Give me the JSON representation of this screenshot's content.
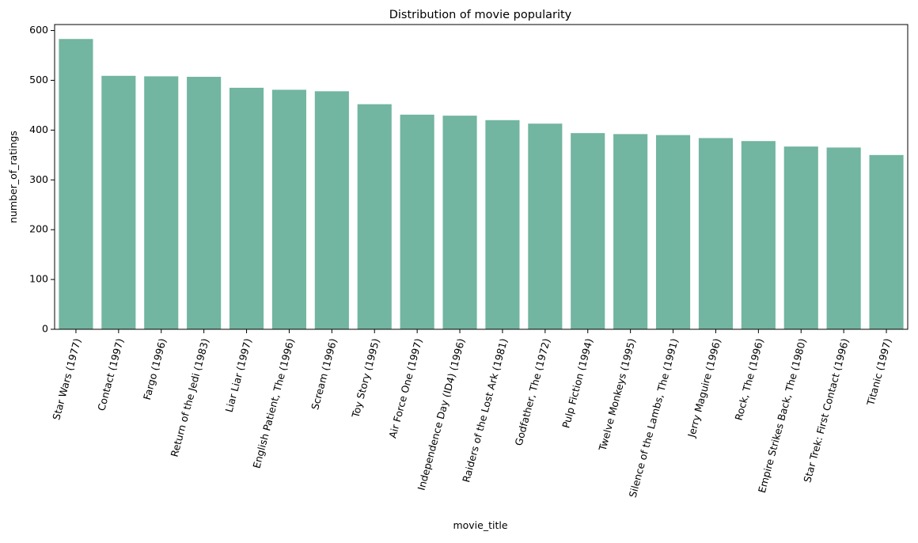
{
  "chart_data": {
    "type": "bar",
    "title": "Distribution of movie popularity",
    "xlabel": "movie_title",
    "ylabel": "number_of_ratings",
    "ylim": [
      0,
      612
    ],
    "yticks": [
      0,
      100,
      200,
      300,
      400,
      500,
      600
    ],
    "grid": false,
    "bar_color": "#72b5a0",
    "categories": [
      "Star Wars (1977)",
      "Contact (1997)",
      "Fargo (1996)",
      "Return of the Jedi (1983)",
      "Liar Liar (1997)",
      "English Patient, The (1996)",
      "Scream (1996)",
      "Toy Story (1995)",
      "Air Force One (1997)",
      "Independence Day (ID4) (1996)",
      "Raiders of the Lost Ark (1981)",
      "Godfather, The (1972)",
      "Pulp Fiction (1994)",
      "Twelve Monkeys (1995)",
      "Silence of the Lambs, The (1991)",
      "Jerry Maguire (1996)",
      "Rock, The (1996)",
      "Empire Strikes Back, The (1980)",
      "Star Trek: First Contact (1996)",
      "Titanic (1997)"
    ],
    "values": [
      583,
      509,
      508,
      507,
      485,
      481,
      478,
      452,
      431,
      429,
      420,
      413,
      394,
      392,
      390,
      384,
      378,
      367,
      365,
      350
    ]
  }
}
